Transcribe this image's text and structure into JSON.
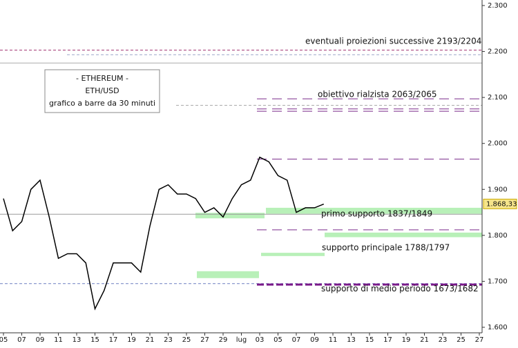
{
  "chart_data": {
    "type": "line",
    "box_lines": [
      "- ETHEREUM -",
      "ETH/USD",
      "grafico a barre da 30 minuti"
    ],
    "categories": [
      "05",
      null,
      "07",
      null,
      "09",
      null,
      "11",
      null,
      "13",
      null,
      "15",
      null,
      "17",
      null,
      "19",
      null,
      "21",
      null,
      "23",
      null,
      "25",
      null,
      "27",
      null,
      "29",
      null,
      "lug",
      null,
      "03",
      null,
      "05",
      null,
      "07",
      null,
      "09",
      null,
      "11",
      null,
      "13",
      null,
      "15",
      null,
      "17",
      null,
      "19",
      null,
      "21",
      null,
      "23",
      null,
      "25",
      null,
      "27"
    ],
    "series": [
      {
        "color": "#000000",
        "values": [
          1880,
          1810,
          1830,
          1900,
          1920,
          1840,
          1750,
          1760,
          1760,
          1740,
          1640,
          1680,
          1740,
          1740,
          1740,
          1720,
          1820,
          1900,
          1910,
          1890,
          1890,
          1880,
          1850,
          1860,
          1840,
          1880,
          1910,
          1920,
          1970,
          1960,
          1930,
          1920,
          1850,
          1860,
          1860,
          1868,
          null,
          null,
          null,
          null,
          null,
          null,
          null,
          null,
          null,
          null,
          null,
          null,
          null,
          null,
          null,
          null,
          null
        ]
      }
    ],
    "ylim": [
      1600,
      2300
    ],
    "yticks": [
      {
        "value": 1600,
        "label": "1.600"
      },
      {
        "value": 1700,
        "label": "1.700"
      },
      {
        "value": 1800,
        "label": "1.800"
      },
      {
        "value": 1900,
        "label": "1.900"
      },
      {
        "value": 2000,
        "label": "2.000"
      },
      {
        "value": 2100,
        "label": "2.100"
      },
      {
        "value": 2200,
        "label": "2.200"
      },
      {
        "value": 2300,
        "label": "2.300"
      }
    ],
    "last": {
      "value": 1868.33,
      "label": "1.868,33"
    },
    "levels": [
      {
        "value": 2203,
        "color": "#a0306f"
      },
      {
        "value": 2193,
        "color": "#9aa6c8"
      },
      {
        "value": 2175,
        "color": "#aaaaaa"
      },
      {
        "value": 2097,
        "color": "#7a2a8a"
      },
      {
        "value": 2083,
        "color": "#aaaaaa"
      },
      {
        "value": 2075,
        "color": "#7a2a8a"
      },
      {
        "value": 2070,
        "color": "#7a2a8a"
      },
      {
        "value": 1966,
        "color": "#7a2a8a"
      },
      {
        "value": 1846,
        "color": "#999999"
      },
      {
        "value": 1812,
        "color": "#7a2a8a"
      },
      {
        "value": 1695,
        "color": "#6d7fc0"
      },
      {
        "value": 1693,
        "color": "#7a1a8a"
      }
    ],
    "zones": [
      {
        "low": 1837,
        "high": 1849,
        "color": "#b8f0b8"
      },
      {
        "low": 1847,
        "high": 1860,
        "color": "#b8f0b8"
      },
      {
        "low": 1796,
        "high": 1806,
        "color": "#b8f0b8"
      },
      {
        "low": 1755,
        "high": 1762,
        "color": "#b8f0b8"
      },
      {
        "low": 1707,
        "high": 1722,
        "color": "#b8f0b8"
      }
    ],
    "annotations": [
      {
        "text": "eventuali proiezioni successive 2193/2204",
        "value": 2222
      },
      {
        "text": "obiettivo rialzista 2063/2065",
        "value": 2106
      },
      {
        "text": "primo supporto 1837/1849",
        "value": 1846
      },
      {
        "text": "supporto principale 1788/1797",
        "value": 1773
      },
      {
        "text": "supporto di medio periodo 1673/1682",
        "value": 1683
      }
    ]
  }
}
